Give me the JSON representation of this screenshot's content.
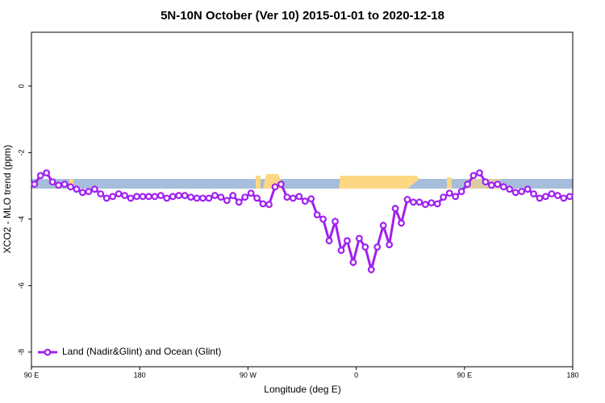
{
  "chart_data": {
    "type": "line",
    "title": "5N-10N October (Ver 10)   2015-01-01 to 2020-12-18",
    "x_label": "Longitude (deg E)",
    "y_label": "XCO2 - MLO trend (ppm)",
    "xlim": [
      90,
      540
    ],
    "ylim": [
      -8.44,
      1.62
    ],
    "xticks": [
      {
        "value": 90,
        "label": "90 E"
      },
      180,
      {
        "value": 270,
        "label": "90 W"
      },
      {
        "value": 360,
        "label": "0"
      },
      {
        "value": 450,
        "label": "90 E"
      },
      {
        "value": 540,
        "label": "180"
      }
    ],
    "yticks": [
      0,
      -2,
      -4,
      -6,
      -8
    ],
    "legend": "bottom-left",
    "x": [
      92.5,
      97.5,
      102.5,
      107.5,
      112.5,
      117.5,
      122.5,
      127.5,
      132.5,
      137.5,
      142.5,
      147.5,
      152.5,
      157.5,
      162.5,
      167.5,
      172.5,
      177.5,
      182.5,
      187.5,
      192.5,
      197.5,
      202.5,
      207.5,
      212.5,
      217.5,
      222.5,
      227.5,
      232.5,
      237.5,
      242.5,
      247.5,
      252.5,
      257.5,
      262.5,
      267.5,
      272.5,
      277.5,
      282.5,
      287.5,
      292.5,
      297.5,
      302.5,
      307.5,
      312.5,
      317.5,
      322.5,
      327.5,
      332.5,
      337.5,
      342.5,
      347.5,
      352.5,
      357.5,
      362.5,
      367.5,
      372.5,
      377.5,
      382.5,
      387.5,
      392.5,
      397.5,
      402.5,
      407.5,
      412.5,
      417.5,
      422.5,
      427.5,
      432.5,
      437.5,
      442.5,
      447.5,
      452.5,
      457.5,
      462.5,
      467.5,
      472.5,
      477.5,
      482.5,
      487.5,
      492.5,
      497.5,
      502.5,
      507.5,
      512.5,
      517.5,
      522.5,
      527.5,
      532.5,
      537.5
    ],
    "series": [
      {
        "name": "Land (Nadir&Glint) and Ocean (Glint)",
        "color": "#a020f0",
        "values": [
          -2.95,
          -2.69,
          -2.61,
          -2.88,
          -2.98,
          -2.95,
          -3.03,
          -3.1,
          -3.2,
          -3.17,
          -3.1,
          -3.24,
          -3.37,
          -3.32,
          -3.24,
          -3.29,
          -3.37,
          -3.32,
          -3.32,
          -3.32,
          -3.32,
          -3.29,
          -3.37,
          -3.32,
          -3.29,
          -3.29,
          -3.34,
          -3.37,
          -3.37,
          -3.37,
          -3.29,
          -3.34,
          -3.44,
          -3.29,
          -3.49,
          -3.34,
          -3.22,
          -3.37,
          -3.54,
          -3.56,
          -3.03,
          -2.95,
          -3.34,
          -3.37,
          -3.32,
          -3.46,
          -3.39,
          -3.87,
          -4.0,
          -4.65,
          -4.07,
          -4.94,
          -4.65,
          -5.3,
          -4.58,
          -4.84,
          -5.52,
          -4.84,
          -4.19,
          -4.77,
          -3.68,
          -4.12,
          -3.41,
          -3.49,
          -3.49,
          -3.56,
          -3.51,
          -3.54,
          -3.34,
          -3.22,
          -3.32,
          -3.17,
          -2.95,
          -2.69,
          -2.61,
          -2.88,
          -2.98,
          -2.95,
          -3.03,
          -3.1,
          -3.2,
          -3.17,
          -3.1,
          -3.24,
          -3.37,
          -3.32,
          -3.24,
          -3.29,
          -3.37,
          -3.32
        ]
      }
    ]
  }
}
